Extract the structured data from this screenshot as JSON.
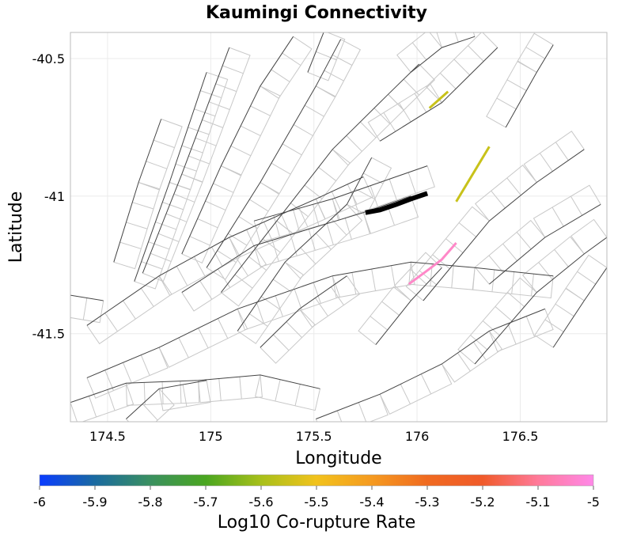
{
  "chart_data": {
    "type": "map",
    "title": "Kaumingi Connectivity",
    "xlabel": "Longitude",
    "ylabel": "Latitude",
    "xlim": [
      174.32,
      176.92
    ],
    "ylim": [
      -41.82,
      -40.405
    ],
    "xticks": [
      174.5,
      175,
      175.5,
      176,
      176.5
    ],
    "xtick_labels": [
      "174.5",
      "175",
      "175.5",
      "176",
      "176.5"
    ],
    "yticks": [
      -40.5,
      -41,
      -41.5
    ],
    "ytick_labels": [
      "-40.5",
      "-41",
      "-41.5"
    ],
    "grid": true,
    "colorbar": {
      "label": "Log10 Co-rupture Rate",
      "range": [
        -6,
        -5
      ],
      "ticks": [
        -6,
        -5.9,
        -5.8,
        -5.7,
        -5.6,
        -5.5,
        -5.4,
        -5.3,
        -5.2,
        -5.1,
        -5
      ],
      "tick_labels": [
        "-6",
        "-5.9",
        "-5.8",
        "-5.7",
        "-5.6",
        "-5.5",
        "-5.4",
        "-5.3",
        "-5.2",
        "-5.1",
        "-5"
      ],
      "colors": [
        "#0a3cff",
        "#1a6aa0",
        "#3a9060",
        "#4aa620",
        "#a8c01a",
        "#f2c21c",
        "#f59a20",
        "#f06a20",
        "#f05a2a",
        "#ff7a9a",
        "#ff88e8"
      ],
      "placement": "bottom"
    },
    "source_fault": {
      "name": "Kaumingi",
      "color": "#000000",
      "trace": [
        [
          175.75,
          -41.06
        ],
        [
          175.82,
          -41.05
        ],
        [
          175.9,
          -41.03
        ],
        [
          175.97,
          -41.01
        ],
        [
          176.05,
          -40.99
        ]
      ]
    },
    "corupture_faults": [
      {
        "value": -5.6,
        "color": "#c8c21a",
        "trace": [
          [
            176.06,
            -40.68
          ],
          [
            176.15,
            -40.62
          ]
        ]
      },
      {
        "value": -5.6,
        "color": "#c8c21a",
        "trace": [
          [
            176.19,
            -41.02
          ],
          [
            176.35,
            -40.82
          ]
        ]
      },
      {
        "value": -5.08,
        "color": "#ff88c8",
        "trace": [
          [
            175.96,
            -41.32
          ],
          [
            176.05,
            -41.27
          ],
          [
            176.12,
            -41.23
          ],
          [
            176.19,
            -41.17
          ]
        ]
      }
    ],
    "background_faults": [
      [
        [
          174.63,
          -41.31
        ],
        [
          174.8,
          -40.95
        ],
        [
          174.98,
          -40.55
        ]
      ],
      [
        [
          174.67,
          -41.28
        ],
        [
          174.86,
          -40.92
        ],
        [
          175.09,
          -40.46
        ]
      ],
      [
        [
          174.53,
          -41.24
        ],
        [
          174.65,
          -40.95
        ],
        [
          174.76,
          -40.72
        ]
      ],
      [
        [
          174.86,
          -41.21
        ],
        [
          175.05,
          -40.89
        ],
        [
          175.24,
          -40.6
        ],
        [
          175.4,
          -40.42
        ]
      ],
      [
        [
          174.98,
          -41.26
        ],
        [
          175.24,
          -40.95
        ],
        [
          175.51,
          -40.6
        ],
        [
          175.63,
          -40.43
        ]
      ],
      [
        [
          175.05,
          -41.35
        ],
        [
          175.32,
          -41.09
        ],
        [
          175.59,
          -40.83
        ],
        [
          175.86,
          -40.63
        ],
        [
          176.01,
          -40.52
        ]
      ],
      [
        [
          175.13,
          -41.49
        ],
        [
          175.36,
          -41.24
        ],
        [
          175.66,
          -41.03
        ],
        [
          175.78,
          -40.86
        ]
      ],
      [
        [
          174.4,
          -41.47
        ],
        [
          174.75,
          -41.29
        ],
        [
          175.09,
          -41.15
        ],
        [
          175.51,
          -41.01
        ],
        [
          175.74,
          -40.93
        ]
      ],
      [
        [
          174.86,
          -41.35
        ],
        [
          175.21,
          -41.18
        ],
        [
          175.74,
          -41.06
        ],
        [
          175.97,
          -41.0
        ]
      ],
      [
        [
          175.21,
          -41.09
        ],
        [
          175.59,
          -41.01
        ],
        [
          176.05,
          -40.89
        ]
      ],
      [
        [
          175.82,
          -40.8
        ],
        [
          176.12,
          -40.66
        ],
        [
          176.39,
          -40.46
        ]
      ],
      [
        [
          175.97,
          -40.55
        ],
        [
          176.12,
          -40.46
        ],
        [
          176.28,
          -40.42
        ]
      ],
      [
        [
          176.03,
          -41.38
        ],
        [
          176.35,
          -41.09
        ],
        [
          176.58,
          -40.95
        ],
        [
          176.81,
          -40.83
        ]
      ],
      [
        [
          176.28,
          -41.61
        ],
        [
          176.58,
          -41.35
        ],
        [
          176.81,
          -41.21
        ],
        [
          176.92,
          -41.15
        ]
      ],
      [
        [
          175.8,
          -41.54
        ],
        [
          175.97,
          -41.38
        ],
        [
          176.12,
          -41.26
        ]
      ],
      [
        [
          174.4,
          -41.66
        ],
        [
          174.75,
          -41.55
        ],
        [
          175.13,
          -41.41
        ],
        [
          175.59,
          -41.29
        ],
        [
          175.97,
          -41.24
        ],
        [
          176.28,
          -41.26
        ],
        [
          176.66,
          -41.29
        ]
      ],
      [
        [
          174.32,
          -41.75
        ],
        [
          174.59,
          -41.68
        ],
        [
          174.94,
          -41.67
        ],
        [
          175.24,
          -41.65
        ],
        [
          175.53,
          -41.7
        ]
      ],
      [
        [
          174.59,
          -41.81
        ],
        [
          174.75,
          -41.7
        ],
        [
          174.98,
          -41.67
        ]
      ],
      [
        [
          175.51,
          -41.81
        ],
        [
          175.82,
          -41.72
        ],
        [
          176.12,
          -41.61
        ],
        [
          176.35,
          -41.49
        ],
        [
          176.62,
          -41.41
        ]
      ],
      [
        [
          175.24,
          -41.55
        ],
        [
          175.43,
          -41.41
        ],
        [
          175.66,
          -41.29
        ]
      ],
      [
        [
          176.35,
          -41.32
        ],
        [
          176.62,
          -41.15
        ],
        [
          176.89,
          -41.03
        ]
      ],
      [
        [
          176.66,
          -41.55
        ],
        [
          176.81,
          -41.38
        ],
        [
          176.92,
          -41.26
        ]
      ],
      [
        [
          174.32,
          -41.36
        ],
        [
          174.48,
          -41.38
        ]
      ],
      [
        [
          175.47,
          -40.55
        ],
        [
          175.55,
          -40.4
        ]
      ],
      [
        [
          176.43,
          -40.75
        ],
        [
          176.58,
          -40.55
        ],
        [
          176.66,
          -40.45
        ]
      ]
    ]
  }
}
